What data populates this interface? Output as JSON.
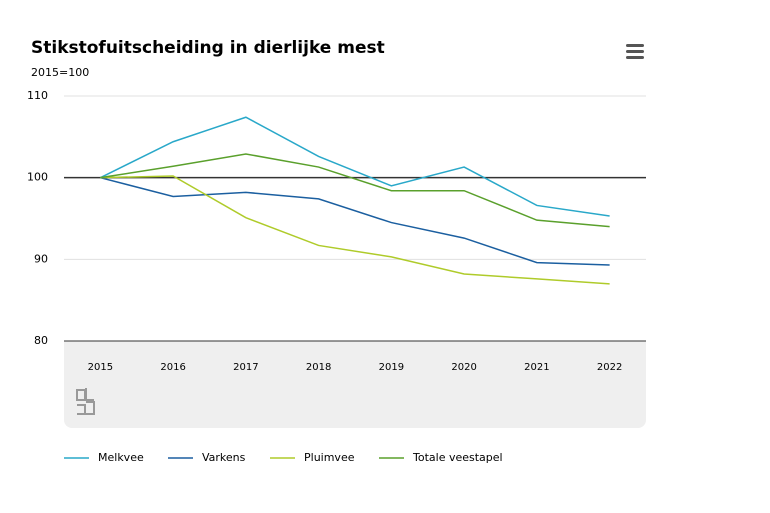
{
  "chart_data": {
    "type": "line",
    "title": "Stikstofuitscheiding in dierlijke mest",
    "subtitle": "2015=100",
    "categories": [
      "2015",
      "2016",
      "2017",
      "2018",
      "2019",
      "2020",
      "2021",
      "2022"
    ],
    "series": [
      {
        "name": "Melkvee",
        "color": "#29a8c9",
        "values": [
          100,
          104.4,
          107.4,
          102.6,
          99.0,
          101.3,
          96.6,
          95.3
        ]
      },
      {
        "name": "Varkens",
        "color": "#1b5fa0",
        "values": [
          100,
          97.7,
          98.2,
          97.4,
          94.5,
          92.6,
          89.6,
          89.3
        ]
      },
      {
        "name": "Pluimvee",
        "color": "#afcb2a",
        "values": [
          100,
          100.2,
          95.1,
          91.7,
          90.3,
          88.2,
          87.6,
          87.0
        ]
      },
      {
        "name": "Totale veestapel",
        "color": "#5aa02c",
        "values": [
          100,
          101.4,
          102.9,
          101.3,
          98.4,
          98.4,
          94.8,
          94.0
        ]
      }
    ],
    "ylim": [
      80,
      110
    ],
    "yticks": [
      80,
      90,
      100,
      110
    ],
    "baseline": 100,
    "grid": true,
    "legend": "bottom"
  }
}
